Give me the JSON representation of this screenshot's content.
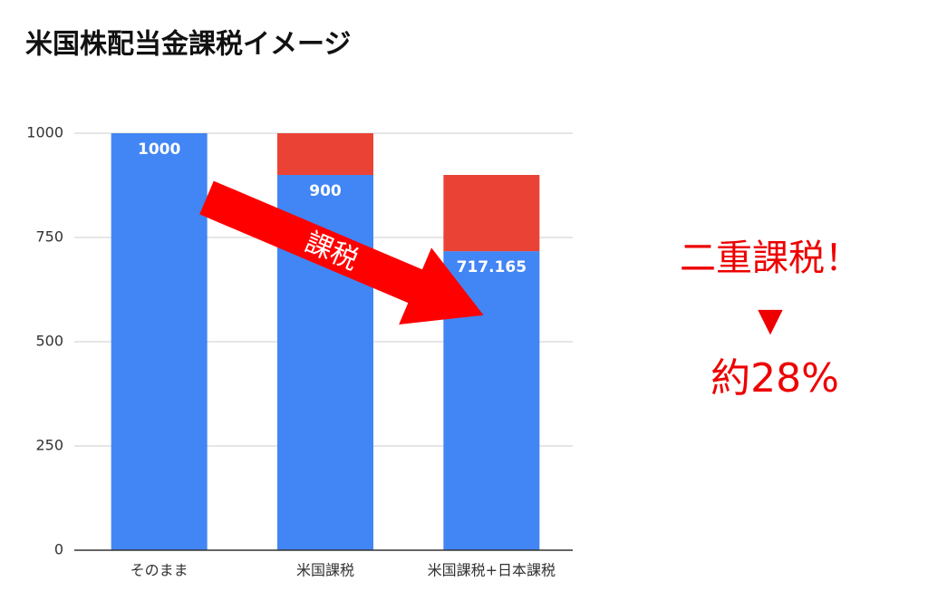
{
  "chart_data": {
    "type": "stacked-bar",
    "title": "米国株配当金課税イメージ",
    "categories": [
      "そのまま",
      "米国課税",
      "米国課税+日本課税"
    ],
    "series": [
      {
        "color": "#4285f4",
        "values": [
          1000,
          900,
          717.165
        ]
      },
      {
        "color": "#ea4335",
        "values": [
          0,
          100,
          182.835
        ]
      }
    ],
    "ylim": [
      0,
      1000
    ],
    "yticks": [
      0,
      250,
      500,
      750,
      1000
    ],
    "grid": true,
    "annotations": [
      "課税",
      "二重課税！",
      "▼",
      "約28%"
    ]
  }
}
